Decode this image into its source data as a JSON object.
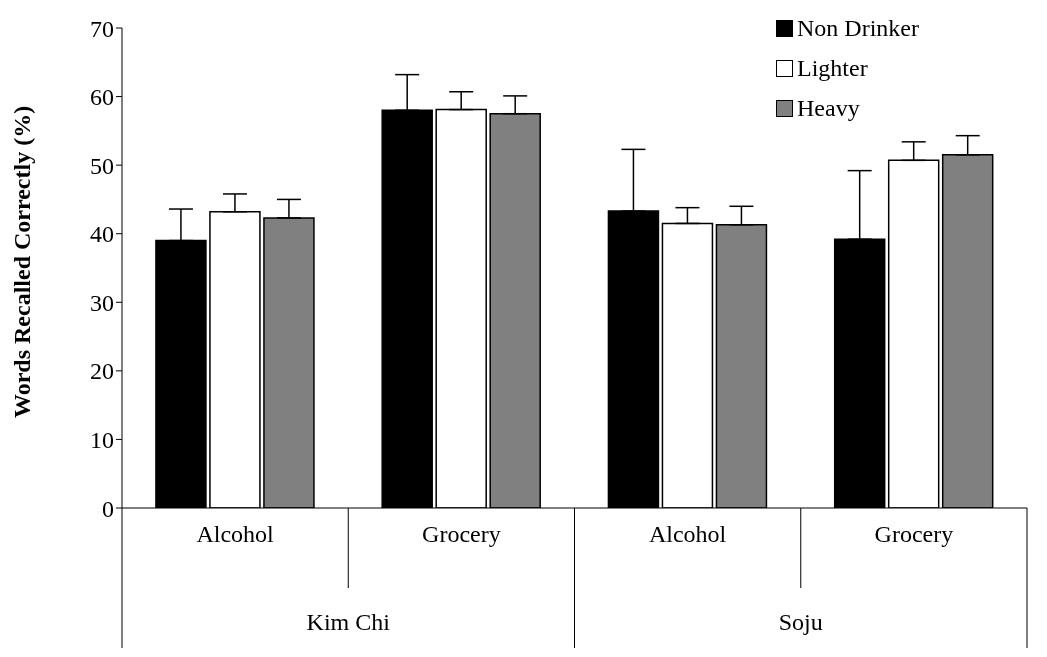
{
  "chart_data": {
    "type": "bar",
    "ylabel": "Words Recalled Correctly (%)",
    "categories": [
      "Alcohol",
      "Grocery",
      "Alcohol",
      "Grocery"
    ],
    "annotations": [
      "Kim Chi",
      "Soju"
    ],
    "series": [
      {
        "name": "Non Drinker",
        "color": "#000000",
        "values": [
          39,
          58,
          43.3,
          39.2
        ],
        "errors": [
          [
            39,
            43.6
          ],
          [
            58,
            63.2
          ],
          [
            43.3,
            52.3
          ],
          [
            39.2,
            49.2
          ]
        ]
      },
      {
        "name": "Lighter",
        "color": "#ffffff",
        "values": [
          43.2,
          58.1,
          41.5,
          50.7
        ],
        "errors": [
          [
            43.2,
            45.8
          ],
          [
            58.1,
            60.7
          ],
          [
            41.5,
            43.8
          ],
          [
            50.7,
            53.4
          ]
        ]
      },
      {
        "name": "Heavy",
        "color": "#808080",
        "values": [
          42.3,
          57.5,
          41.3,
          51.5
        ],
        "errors": [
          [
            42.3,
            45
          ],
          [
            57.5,
            60.1
          ],
          [
            41.3,
            44
          ],
          [
            51.5,
            54.3
          ]
        ]
      }
    ],
    "ylim": [
      0,
      70
    ],
    "yticks": [
      0,
      10,
      20,
      30,
      40,
      50,
      60,
      70
    ],
    "grid": false,
    "legend": "top right"
  }
}
